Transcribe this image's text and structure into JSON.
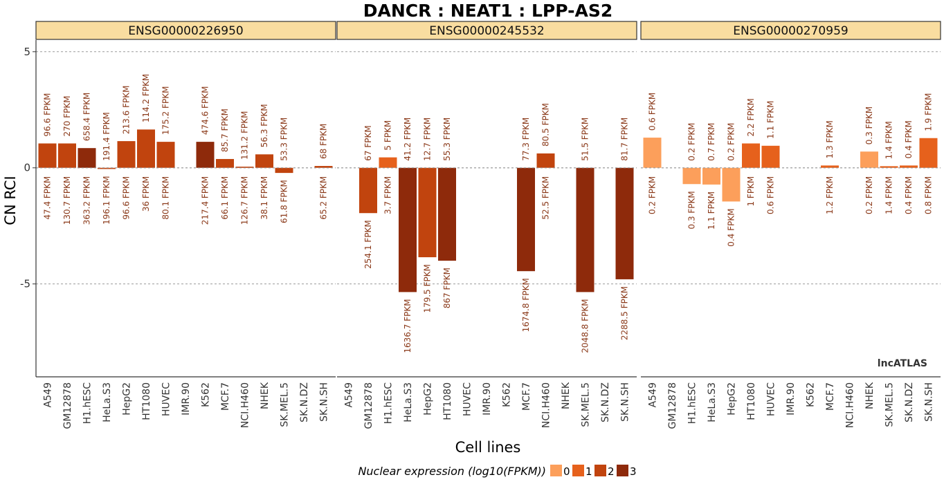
{
  "chart_data": {
    "type": "bar",
    "title": "DANCR : NEAT1 : LPP-AS2",
    "xlabel": "Cell lines",
    "ylabel": "CN RCI",
    "ylim": [
      -9,
      5.5
    ],
    "yticks": [
      5,
      0,
      -5
    ],
    "ytick_labels": [
      "5",
      "0",
      "-5"
    ],
    "grid": "dashed at y-ticks",
    "categories": [
      "A549",
      "GM12878",
      "H1.hESC",
      "HeLa.S3",
      "HepG2",
      "HT1080",
      "HUVEC",
      "IMR.90",
      "K562",
      "MCF.7",
      "NCI.H460",
      "NHEK",
      "SK.MEL.5",
      "SK.N.DZ",
      "SK.N.SH"
    ],
    "legend": {
      "title": "Nuclear expression (log10(FPKM))",
      "position": "bottom",
      "levels": [
        "0",
        "1",
        "2",
        "3"
      ],
      "colors": [
        "#fc9f5b",
        "#e6611c",
        "#c1440e",
        "#8e2a0b"
      ]
    },
    "watermark": "lncATLAS",
    "panels": [
      {
        "label": "ENSG00000226950",
        "values": [
          1.05,
          1.05,
          0.85,
          -0.05,
          1.15,
          1.65,
          1.12,
          null,
          1.12,
          0.38,
          0.05,
          0.58,
          -0.22,
          null,
          0.08
        ],
        "level": [
          2,
          2,
          3,
          2,
          2,
          2,
          2,
          null,
          3,
          2,
          2,
          2,
          2,
          null,
          2
        ],
        "top_labels": [
          "96.6 FPKM",
          "270 FPKM",
          "658.4 FPKM",
          "191.4 FPKM",
          "213.6 FPKM",
          "114.2 FPKM",
          "175.2 FPKM",
          "",
          "474.6 FPKM",
          "85.7 FPKM",
          "131.2 FPKM",
          "56.3 FPKM",
          "53.3 FPKM",
          "",
          "68 FPKM"
        ],
        "bottom_labels": [
          "47.4 FPKM",
          "130.7 FPKM",
          "363.2 FPKM",
          "196.1 FPKM",
          "96.6 FPKM",
          "36 FPKM",
          "80.1 FPKM",
          "",
          "217.4 FPKM",
          "66.1 FPKM",
          "126.7 FPKM",
          "38.1 FPKM",
          "61.8 FPKM",
          "",
          "65.2 FPKM"
        ]
      },
      {
        "label": "ENSG00000245532",
        "values": [
          null,
          -1.95,
          0.45,
          -5.35,
          -3.85,
          -4.0,
          null,
          null,
          null,
          -4.45,
          0.62,
          null,
          -5.35,
          null,
          -4.8
        ],
        "level": [
          null,
          2,
          1,
          3,
          2,
          3,
          null,
          null,
          null,
          3,
          2,
          null,
          3,
          null,
          3
        ],
        "top_labels": [
          "",
          "67 FPKM",
          "5 FPKM",
          "41.2 FPKM",
          "12.7 FPKM",
          "55.3 FPKM",
          "",
          "",
          "",
          "77.3 FPKM",
          "80.5 FPKM",
          "",
          "51.5 FPKM",
          "",
          "81.7 FPKM"
        ],
        "bottom_labels": [
          "",
          "254.1 FPKM",
          "3.7 FPKM",
          "1636.7 FPKM",
          "179.5 FPKM",
          "867 FPKM",
          "",
          "",
          "",
          "1674.8 FPKM",
          "52.5 FPKM",
          "",
          "2048.8 FPKM",
          "",
          "2288.5 FPKM"
        ]
      },
      {
        "label": "ENSG00000270959",
        "values": [
          1.3,
          null,
          -0.7,
          -0.72,
          -1.45,
          1.05,
          0.95,
          null,
          null,
          0.1,
          null,
          0.7,
          0.07,
          0.1,
          1.28
        ],
        "level": [
          0,
          null,
          0,
          0,
          0,
          1,
          1,
          null,
          null,
          1,
          null,
          0,
          1,
          1,
          1
        ],
        "top_labels": [
          "0.6 FPKM",
          "",
          "0.2 FPKM",
          "0.7 FPKM",
          "0.2 FPKM",
          "2.2 FPKM",
          "1.1 FPKM",
          "",
          "",
          "1.3 FPKM",
          "",
          "0.3 FPKM",
          "1.4 FPKM",
          "0.4 FPKM",
          "1.9 FPKM"
        ],
        "bottom_labels": [
          "0.2 FPKM",
          "",
          "0.3 FPKM",
          "1.1 FPKM",
          "0.4 FPKM",
          "1 FPKM",
          "0.6 FPKM",
          "",
          "",
          "1.2 FPKM",
          "",
          "0.2 FPKM",
          "1.4 FPKM",
          "0.4 FPKM",
          "0.8 FPKM"
        ]
      }
    ]
  }
}
